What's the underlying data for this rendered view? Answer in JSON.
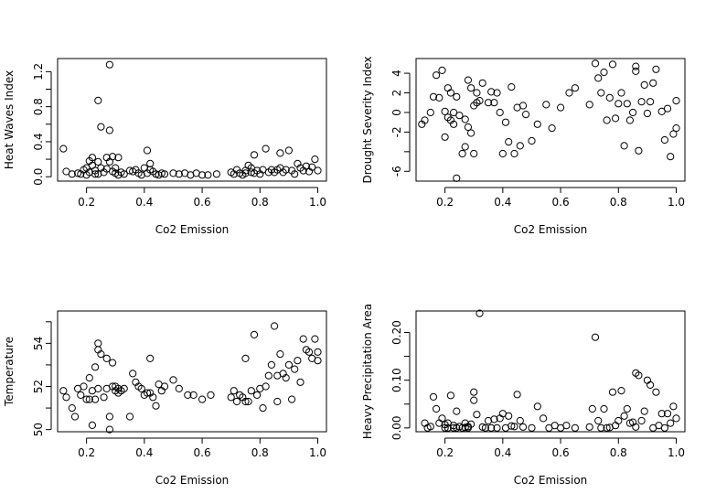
{
  "chart_data": [
    {
      "type": "scatter",
      "xlabel": "Co2 Emission",
      "ylabel": "Heat Waves Index",
      "xlim": [
        0.1,
        1.03
      ],
      "ylim": [
        -0.05,
        1.35
      ],
      "xticks": [
        0.2,
        0.4,
        0.6,
        0.8,
        1.0
      ],
      "xtick_labels": [
        "0.2",
        "0.4",
        "0.6",
        "0.8",
        "1.0"
      ],
      "yticks": [
        0.0,
        0.2,
        0.4,
        0.6,
        0.8,
        1.0,
        1.2
      ],
      "ytick_labels": [
        "0.0",
        "",
        "0.4",
        "",
        "0.8",
        "",
        "1.2"
      ],
      "grid": false,
      "x": [
        0.12,
        0.13,
        0.15,
        0.17,
        0.18,
        0.19,
        0.2,
        0.2,
        0.21,
        0.21,
        0.22,
        0.22,
        0.23,
        0.23,
        0.24,
        0.24,
        0.24,
        0.25,
        0.25,
        0.26,
        0.27,
        0.27,
        0.28,
        0.28,
        0.28,
        0.29,
        0.29,
        0.3,
        0.3,
        0.31,
        0.31,
        0.32,
        0.33,
        0.35,
        0.36,
        0.37,
        0.38,
        0.39,
        0.4,
        0.41,
        0.41,
        0.42,
        0.42,
        0.43,
        0.44,
        0.45,
        0.46,
        0.47,
        0.5,
        0.52,
        0.54,
        0.56,
        0.58,
        0.6,
        0.62,
        0.65,
        0.7,
        0.71,
        0.72,
        0.73,
        0.74,
        0.75,
        0.75,
        0.76,
        0.77,
        0.77,
        0.78,
        0.78,
        0.79,
        0.8,
        0.81,
        0.82,
        0.83,
        0.84,
        0.85,
        0.86,
        0.87,
        0.87,
        0.88,
        0.89,
        0.9,
        0.91,
        0.92,
        0.93,
        0.94,
        0.95,
        0.96,
        0.97,
        0.98,
        0.99,
        1.0
      ],
      "y": [
        0.32,
        0.06,
        0.03,
        0.04,
        0.03,
        0.08,
        0.02,
        0.1,
        0.18,
        0.05,
        0.13,
        0.22,
        0.07,
        0.03,
        0.17,
        0.87,
        0.03,
        0.57,
        0.1,
        0.05,
        0.09,
        0.22,
        1.28,
        0.17,
        0.53,
        0.06,
        0.23,
        0.04,
        0.1,
        0.02,
        0.22,
        0.05,
        0.03,
        0.07,
        0.06,
        0.08,
        0.04,
        0.02,
        0.1,
        0.3,
        0.04,
        0.15,
        0.08,
        0.06,
        0.03,
        0.02,
        0.04,
        0.03,
        0.04,
        0.03,
        0.04,
        0.02,
        0.04,
        0.02,
        0.02,
        0.03,
        0.05,
        0.03,
        0.08,
        0.04,
        0.02,
        0.07,
        0.04,
        0.13,
        0.05,
        0.1,
        0.25,
        0.04,
        0.07,
        0.03,
        0.08,
        0.32,
        0.05,
        0.08,
        0.05,
        0.08,
        0.27,
        0.1,
        0.05,
        0.08,
        0.3,
        0.07,
        0.03,
        0.15,
        0.1,
        0.07,
        0.12,
        0.06,
        0.11,
        0.2,
        0.07
      ]
    },
    {
      "type": "scatter",
      "xlabel": "Co2 Emission",
      "ylabel": "Drought Severity Index",
      "xlim": [
        0.1,
        1.03
      ],
      "ylim": [
        -7.0,
        5.5
      ],
      "xticks": [
        0.2,
        0.4,
        0.6,
        0.8,
        1.0
      ],
      "xtick_labels": [
        "0.2",
        "0.4",
        "0.6",
        "0.8",
        "1.0"
      ],
      "yticks": [
        -6,
        -4,
        -2,
        0,
        2,
        4
      ],
      "ytick_labels": [
        "-6",
        "",
        "-2",
        "0",
        "2",
        "4"
      ],
      "grid": false,
      "x": [
        0.12,
        0.13,
        0.15,
        0.16,
        0.17,
        0.18,
        0.19,
        0.2,
        0.2,
        0.21,
        0.21,
        0.22,
        0.22,
        0.23,
        0.23,
        0.24,
        0.24,
        0.25,
        0.26,
        0.27,
        0.27,
        0.28,
        0.28,
        0.29,
        0.29,
        0.3,
        0.3,
        0.31,
        0.31,
        0.32,
        0.33,
        0.35,
        0.36,
        0.37,
        0.38,
        0.39,
        0.4,
        0.41,
        0.42,
        0.43,
        0.44,
        0.45,
        0.46,
        0.47,
        0.48,
        0.5,
        0.52,
        0.55,
        0.57,
        0.6,
        0.63,
        0.65,
        0.7,
        0.72,
        0.73,
        0.74,
        0.75,
        0.76,
        0.77,
        0.78,
        0.79,
        0.8,
        0.81,
        0.82,
        0.83,
        0.84,
        0.85,
        0.86,
        0.86,
        0.87,
        0.88,
        0.89,
        0.9,
        0.91,
        0.92,
        0.93,
        0.95,
        0.96,
        0.97,
        0.98,
        0.99,
        1.0,
        1.0
      ],
      "y": [
        -1.2,
        -0.8,
        0.0,
        1.6,
        3.8,
        1.5,
        4.3,
        0.1,
        -2.5,
        -0.5,
        2.5,
        -0.8,
        2.0,
        -1.2,
        0.0,
        -6.7,
        1.6,
        -0.3,
        -4.2,
        -0.7,
        -3.5,
        3.3,
        -1.5,
        -2.1,
        2.5,
        -4.2,
        0.7,
        2.0,
        1.0,
        1.2,
        3.0,
        1.0,
        2.1,
        1.0,
        2.0,
        0.0,
        -4.2,
        -1.0,
        -3.0,
        2.6,
        -4.2,
        0.5,
        -3.4,
        0.7,
        -0.2,
        -2.9,
        -1.2,
        0.8,
        -1.6,
        0.5,
        2.0,
        2.5,
        0.8,
        5.0,
        3.5,
        2.0,
        4.1,
        -0.8,
        1.5,
        4.9,
        -0.6,
        0.9,
        2.0,
        -3.4,
        0.9,
        -0.8,
        0.0,
        4.7,
        4.2,
        -3.9,
        1.1,
        2.8,
        -0.1,
        1.1,
        3.0,
        4.4,
        0.1,
        -2.8,
        0.4,
        -4.5,
        -2.2,
        1.2,
        -1.6
      ]
    },
    {
      "type": "scatter",
      "xlabel": "Co2 Emission",
      "ylabel": "Temperature",
      "xlim": [
        0.1,
        1.03
      ],
      "ylim": [
        49.9,
        55.5
      ],
      "xticks": [
        0.2,
        0.4,
        0.6,
        0.8,
        1.0
      ],
      "xtick_labels": [
        "0.2",
        "0.4",
        "0.6",
        "0.8",
        "1.0"
      ],
      "yticks": [
        50,
        51,
        52,
        53,
        54,
        55
      ],
      "ytick_labels": [
        "50",
        "",
        "52",
        "",
        "54",
        ""
      ],
      "grid": false,
      "x": [
        0.12,
        0.13,
        0.15,
        0.16,
        0.17,
        0.18,
        0.19,
        0.2,
        0.21,
        0.21,
        0.22,
        0.22,
        0.23,
        0.23,
        0.24,
        0.24,
        0.24,
        0.25,
        0.26,
        0.27,
        0.27,
        0.28,
        0.28,
        0.29,
        0.29,
        0.3,
        0.3,
        0.31,
        0.31,
        0.32,
        0.33,
        0.35,
        0.36,
        0.37,
        0.38,
        0.39,
        0.4,
        0.41,
        0.42,
        0.42,
        0.43,
        0.44,
        0.45,
        0.46,
        0.47,
        0.5,
        0.52,
        0.55,
        0.57,
        0.6,
        0.63,
        0.7,
        0.71,
        0.72,
        0.73,
        0.74,
        0.75,
        0.75,
        0.76,
        0.77,
        0.78,
        0.79,
        0.8,
        0.81,
        0.82,
        0.83,
        0.84,
        0.85,
        0.86,
        0.86,
        0.87,
        0.88,
        0.89,
        0.9,
        0.91,
        0.92,
        0.93,
        0.94,
        0.95,
        0.96,
        0.97,
        0.98,
        0.99,
        1.0,
        1.0
      ],
      "y": [
        51.8,
        51.5,
        51.0,
        50.6,
        51.9,
        51.6,
        52.0,
        51.4,
        51.4,
        52.4,
        51.8,
        50.2,
        52.9,
        51.4,
        54.0,
        53.7,
        51.9,
        53.5,
        51.5,
        53.3,
        51.9,
        50.0,
        50.6,
        52.0,
        53.1,
        51.8,
        52.0,
        51.7,
        51.9,
        51.8,
        51.9,
        50.6,
        52.6,
        52.2,
        52.0,
        51.9,
        51.6,
        51.7,
        53.3,
        51.7,
        51.5,
        51.1,
        52.1,
        51.8,
        52.0,
        52.3,
        51.9,
        51.6,
        51.6,
        51.4,
        51.6,
        51.5,
        51.8,
        51.3,
        51.6,
        51.5,
        53.3,
        51.3,
        51.3,
        51.8,
        54.4,
        51.6,
        51.9,
        51.0,
        52.0,
        52.5,
        53.0,
        54.8,
        52.5,
        51.3,
        53.5,
        52.6,
        52.4,
        53.0,
        51.4,
        52.8,
        53.2,
        52.2,
        54.2,
        53.7,
        53.6,
        53.3,
        54.2,
        53.2,
        53.6
      ]
    },
    {
      "type": "scatter",
      "xlabel": "Co2 Emission",
      "ylabel": "Heavy Precipitation Area",
      "xlim": [
        0.1,
        1.03
      ],
      "ylim": [
        -0.008,
        0.245
      ],
      "xticks": [
        0.2,
        0.4,
        0.6,
        0.8,
        1.0
      ],
      "xtick_labels": [
        "0.2",
        "0.4",
        "0.6",
        "0.8",
        "1.0"
      ],
      "yticks": [
        0.0,
        0.05,
        0.1,
        0.15,
        0.2
      ],
      "ytick_labels": [
        "0.00",
        "",
        "0.10",
        "",
        "0.20"
      ],
      "grid": false,
      "x": [
        0.13,
        0.14,
        0.15,
        0.16,
        0.17,
        0.18,
        0.19,
        0.2,
        0.2,
        0.21,
        0.21,
        0.22,
        0.23,
        0.23,
        0.24,
        0.24,
        0.25,
        0.26,
        0.27,
        0.27,
        0.28,
        0.28,
        0.29,
        0.3,
        0.3,
        0.31,
        0.32,
        0.33,
        0.34,
        0.35,
        0.36,
        0.37,
        0.38,
        0.39,
        0.4,
        0.41,
        0.42,
        0.43,
        0.44,
        0.45,
        0.46,
        0.47,
        0.5,
        0.52,
        0.54,
        0.56,
        0.58,
        0.6,
        0.62,
        0.65,
        0.7,
        0.71,
        0.72,
        0.73,
        0.74,
        0.75,
        0.76,
        0.77,
        0.78,
        0.79,
        0.8,
        0.81,
        0.82,
        0.83,
        0.84,
        0.85,
        0.86,
        0.86,
        0.87,
        0.88,
        0.89,
        0.9,
        0.91,
        0.92,
        0.93,
        0.94,
        0.95,
        0.96,
        0.97,
        0.98,
        0.99,
        1.0
      ],
      "y": [
        0.01,
        0.0,
        0.003,
        0.065,
        0.04,
        0.01,
        0.02,
        0.0,
        0.007,
        0.01,
        0.0,
        0.068,
        0.005,
        0.0,
        0.0,
        0.035,
        0.003,
        0.0,
        0.001,
        0.01,
        0.0,
        0.003,
        0.008,
        0.075,
        0.058,
        0.028,
        0.24,
        0.002,
        0.0,
        0.015,
        0.0,
        0.018,
        0.0,
        0.02,
        0.03,
        0.0,
        0.025,
        0.004,
        0.003,
        0.07,
        0.015,
        0.002,
        0.0,
        0.045,
        0.02,
        0.0,
        0.005,
        0.0,
        0.005,
        0.0,
        0.002,
        0.04,
        0.19,
        0.015,
        0.0,
        0.04,
        0.0,
        0.001,
        0.075,
        0.005,
        0.015,
        0.078,
        0.025,
        0.04,
        0.01,
        0.012,
        0.115,
        0.002,
        0.11,
        0.015,
        0.035,
        0.1,
        0.09,
        0.0,
        0.075,
        0.005,
        0.03,
        0.0,
        0.03,
        0.01,
        0.045,
        0.02
      ]
    }
  ]
}
